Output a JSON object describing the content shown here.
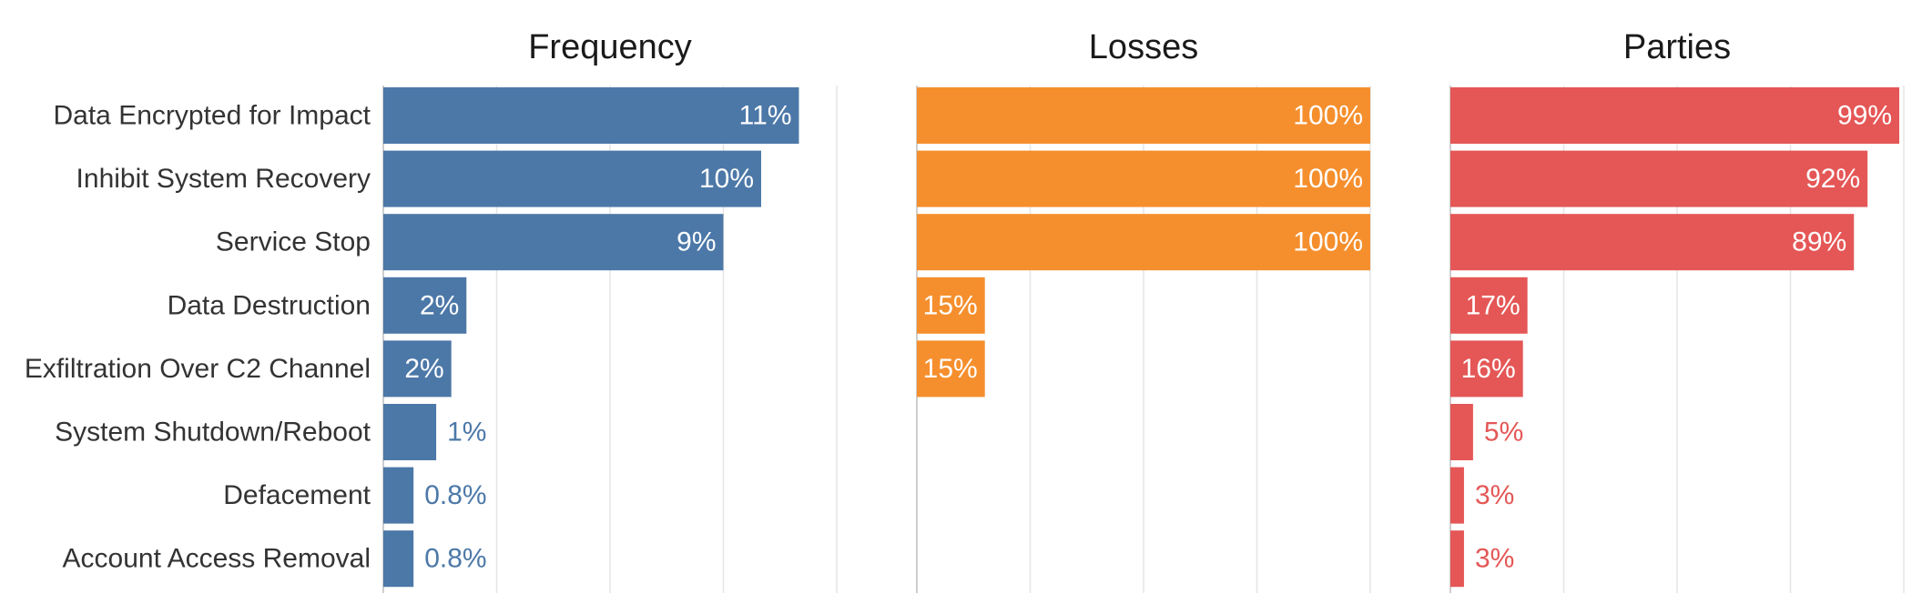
{
  "chart_data": {
    "type": "bar",
    "orientation": "horizontal",
    "categories": [
      "Data Encrypted for Impact",
      "Inhibit System Recovery",
      "Service Stop",
      "Data Destruction",
      "Exfiltration Over C2 Channel",
      "System Shutdown/Reboot",
      "Defacement",
      "Account Access Removal"
    ],
    "series": [
      {
        "name": "Frequency",
        "color": "#4c78a8",
        "xlim": [
          0,
          12
        ],
        "gridlines": [
          3,
          6,
          9,
          12
        ],
        "values": [
          11,
          10,
          9,
          2.2,
          1.8,
          1.4,
          0.8,
          0.8
        ],
        "labels": [
          "11%",
          "10%",
          "9%",
          "2%",
          "2%",
          "1%",
          "0.8%",
          "0.8%"
        ]
      },
      {
        "name": "Losses",
        "color": "#f58f2d",
        "xlim": [
          0,
          100
        ],
        "gridlines": [
          25,
          50,
          75,
          100
        ],
        "values": [
          100,
          100,
          100,
          15,
          15,
          null,
          null,
          null
        ],
        "labels": [
          "100%",
          "100%",
          "100%",
          "15%",
          "15%",
          "",
          "",
          ""
        ]
      },
      {
        "name": "Parties",
        "color": "#e45756",
        "xlim": [
          0,
          100
        ],
        "gridlines": [
          25,
          50,
          75,
          100
        ],
        "values": [
          99,
          92,
          89,
          17,
          16,
          5,
          3,
          3
        ],
        "labels": [
          "99%",
          "92%",
          "89%",
          "17%",
          "16%",
          "5%",
          "3%",
          "3%"
        ]
      }
    ],
    "label_color_inside": "#ffffff"
  }
}
